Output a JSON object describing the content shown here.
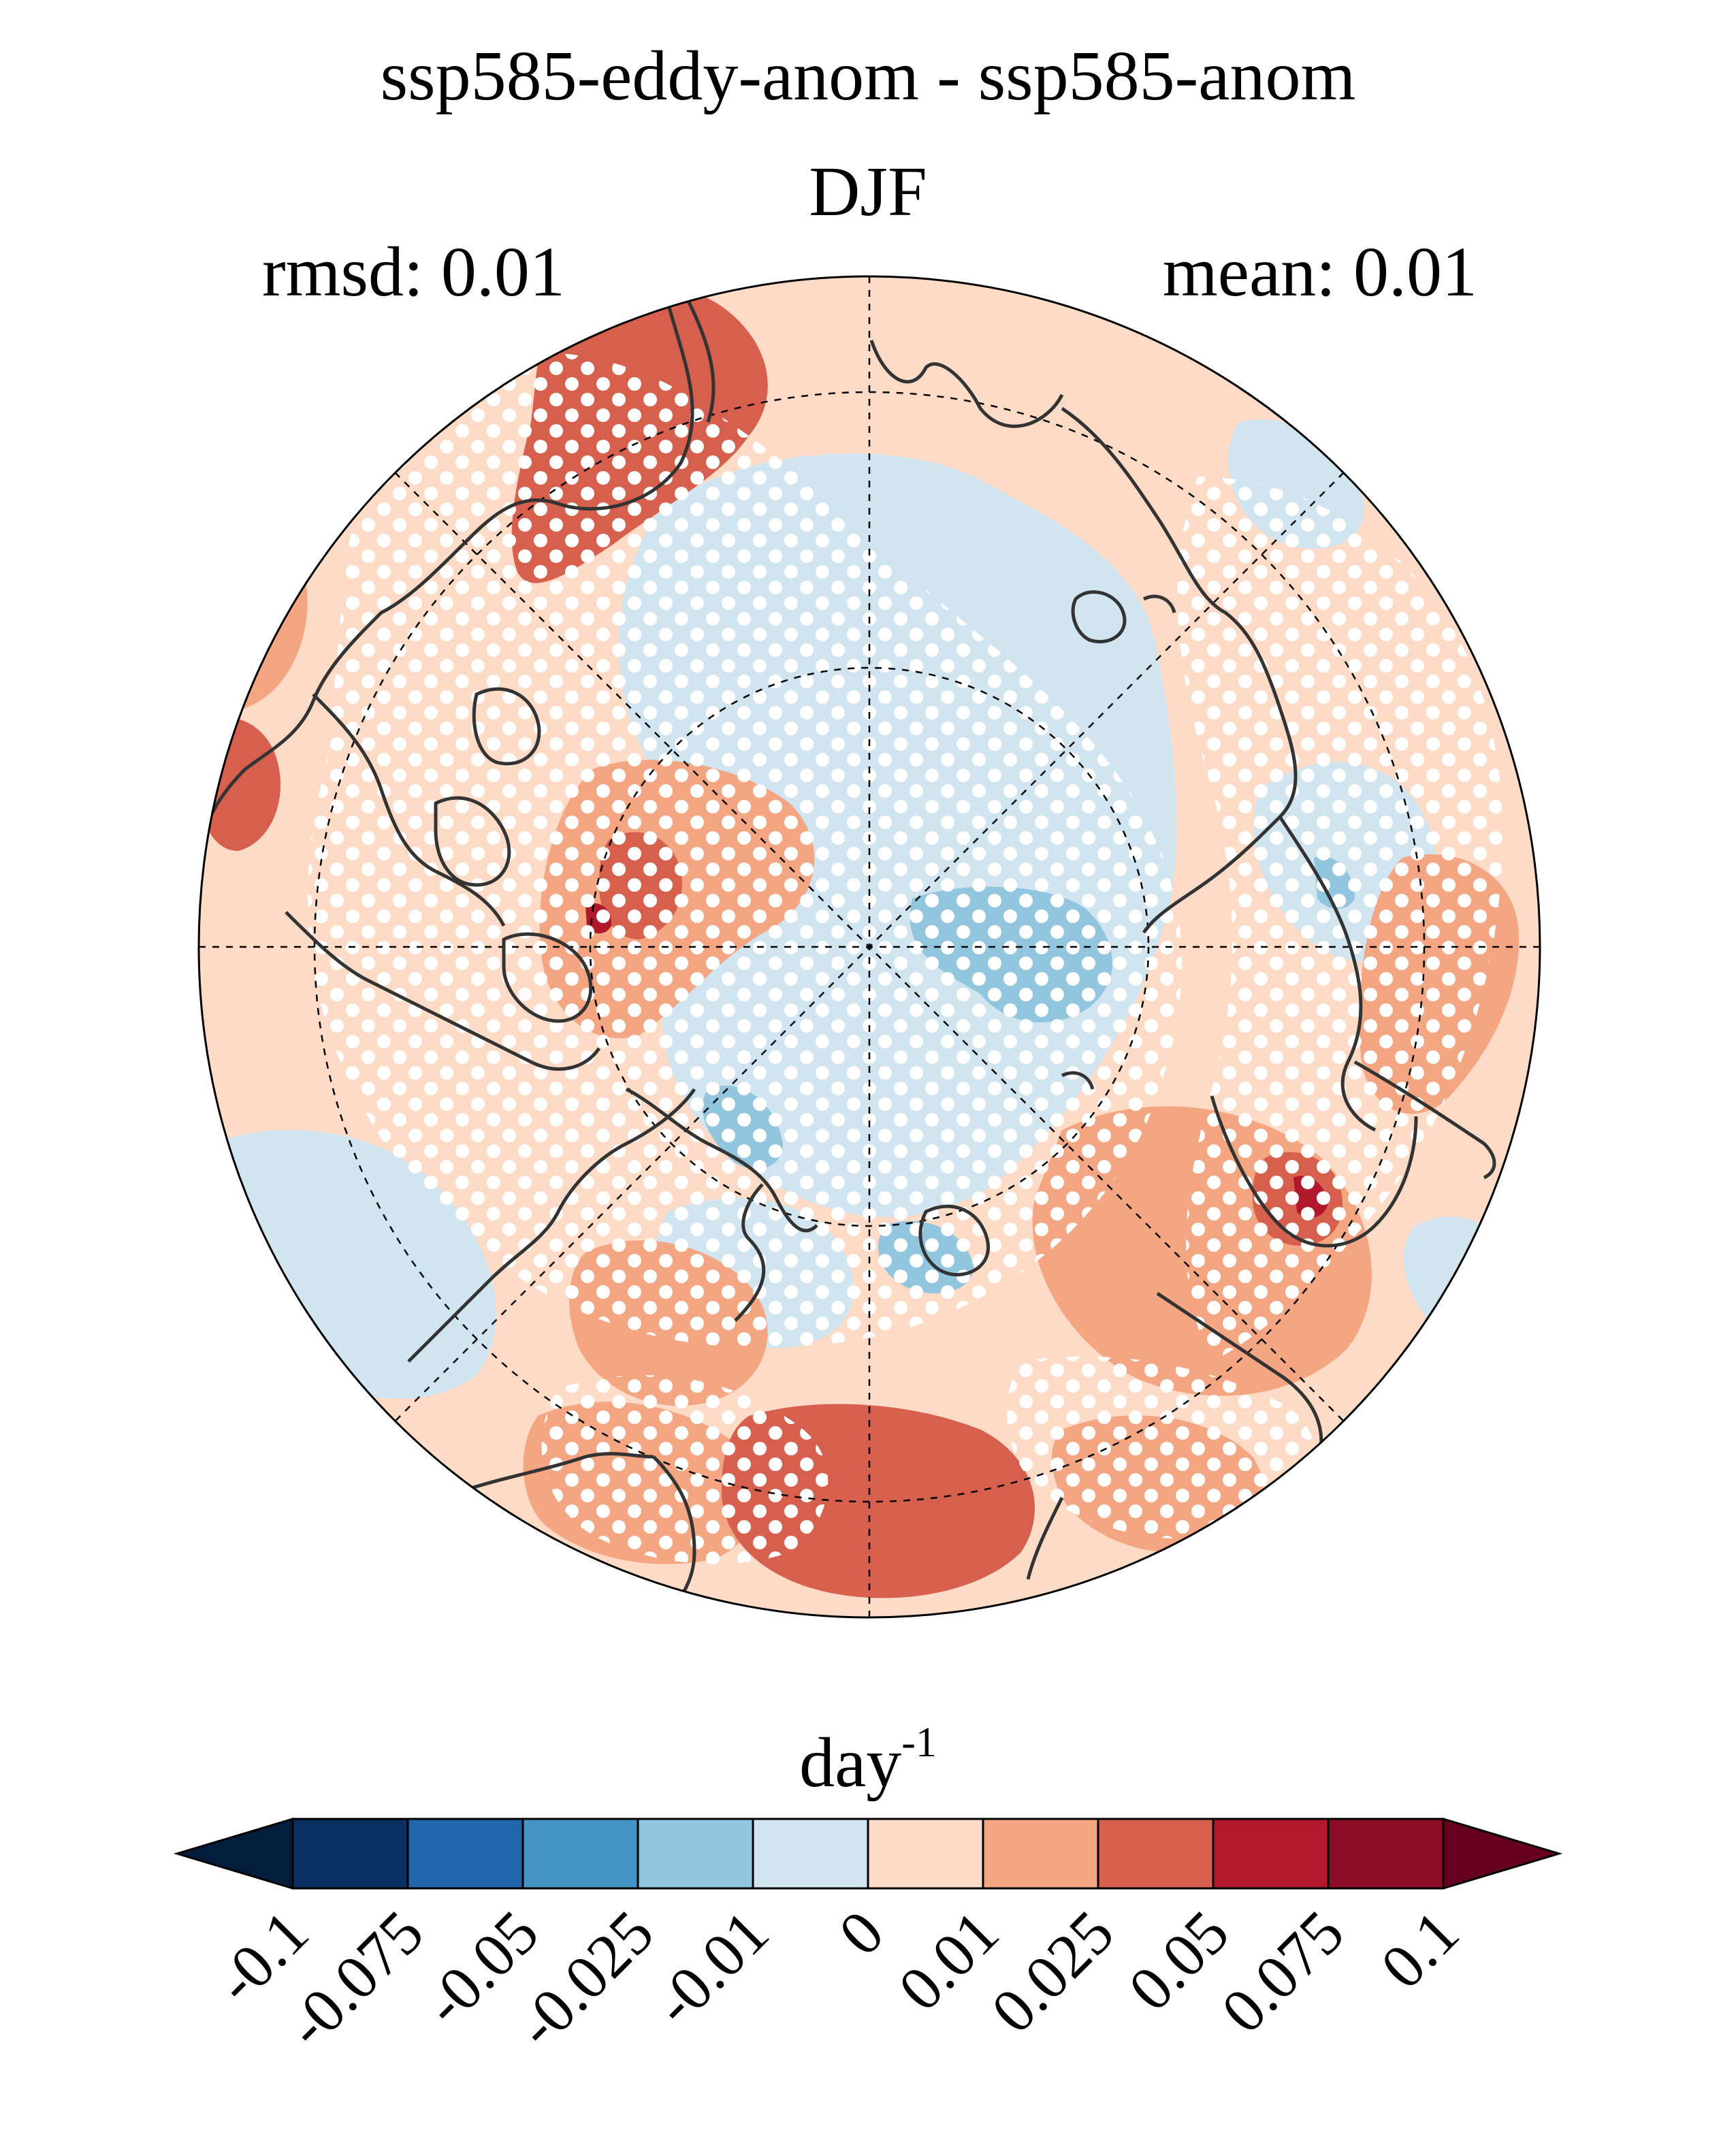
{
  "header": {
    "title": "ssp585-eddy-anom - ssp585-anom",
    "season": "DJF",
    "rmsd": "rmsd: 0.01",
    "mean": "mean: 0.01"
  },
  "colorbar": {
    "unit_base": "day",
    "unit_exponent": "-1",
    "ticks": [
      "-0.1",
      "-0.075",
      "-0.05",
      "-0.025",
      "-0.01",
      "0",
      "0.01",
      "0.025",
      "0.05",
      "0.075",
      "0.1"
    ],
    "colors": [
      "#0a2f60",
      "#2166ac",
      "#4393c3",
      "#92c5de",
      "#d1e5f0",
      "#fddbc7",
      "#f4a582",
      "#d6604d",
      "#b2182b",
      "#8c0c25"
    ],
    "under_color": "#051d3d",
    "over_color": "#67001f"
  },
  "map": {
    "projection": "north polar stereographic",
    "background_color": "#fddbc7",
    "coastline_color": "#333333",
    "stipple_color": "#ffffff"
  }
}
